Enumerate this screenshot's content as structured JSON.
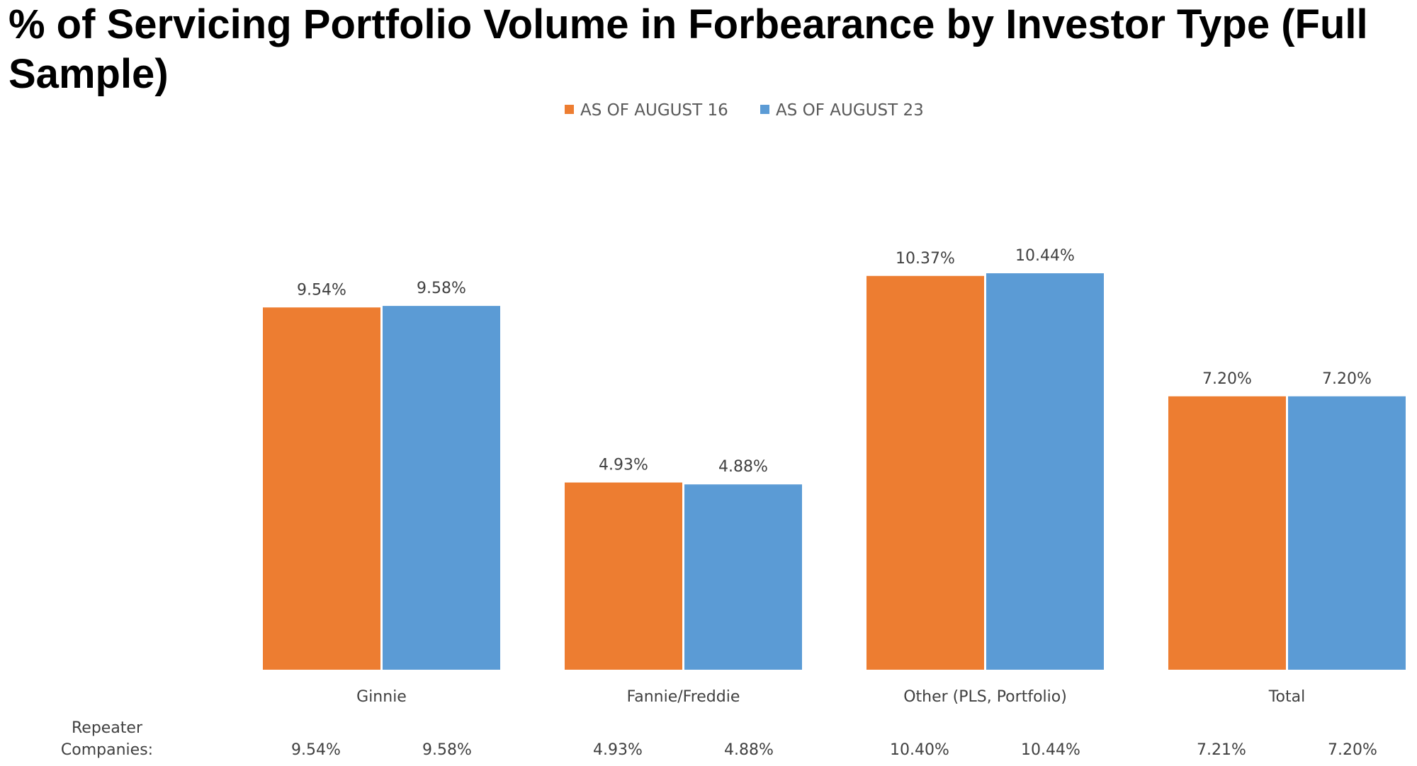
{
  "title": "% of Servicing Portfolio Volume in Forbearance by Investor Type (Full Sample)",
  "chart_data": {
    "type": "bar",
    "title": "% of Servicing Portfolio Volume in Forbearance by Investor Type (Full Sample)",
    "categories": [
      "Ginnie",
      "Fannie/Freddie",
      "Other (PLS, Portfolio)",
      "Total"
    ],
    "series": [
      {
        "name": "AS OF AUGUST 16",
        "color": "#ED7D31",
        "values": [
          9.54,
          4.93,
          10.37,
          7.2
        ],
        "labels": [
          "9.54%",
          "4.93%",
          "10.37%",
          "7.20%"
        ]
      },
      {
        "name": "AS OF AUGUST 23",
        "color": "#5B9BD5",
        "values": [
          9.58,
          4.88,
          10.44,
          7.2
        ],
        "labels": [
          "9.58%",
          "4.88%",
          "10.44%",
          "7.20%"
        ]
      }
    ],
    "ylim": [
      0,
      10.44
    ],
    "grid": false,
    "legend_position": "top-center",
    "repeater": {
      "label_line1": "Repeater",
      "label_line2": "Companies:",
      "values": [
        [
          "9.54%",
          "9.58%"
        ],
        [
          "4.93%",
          "4.88%"
        ],
        [
          "10.40%",
          "10.44%"
        ],
        [
          "7.21%",
          "7.20%"
        ]
      ]
    }
  }
}
